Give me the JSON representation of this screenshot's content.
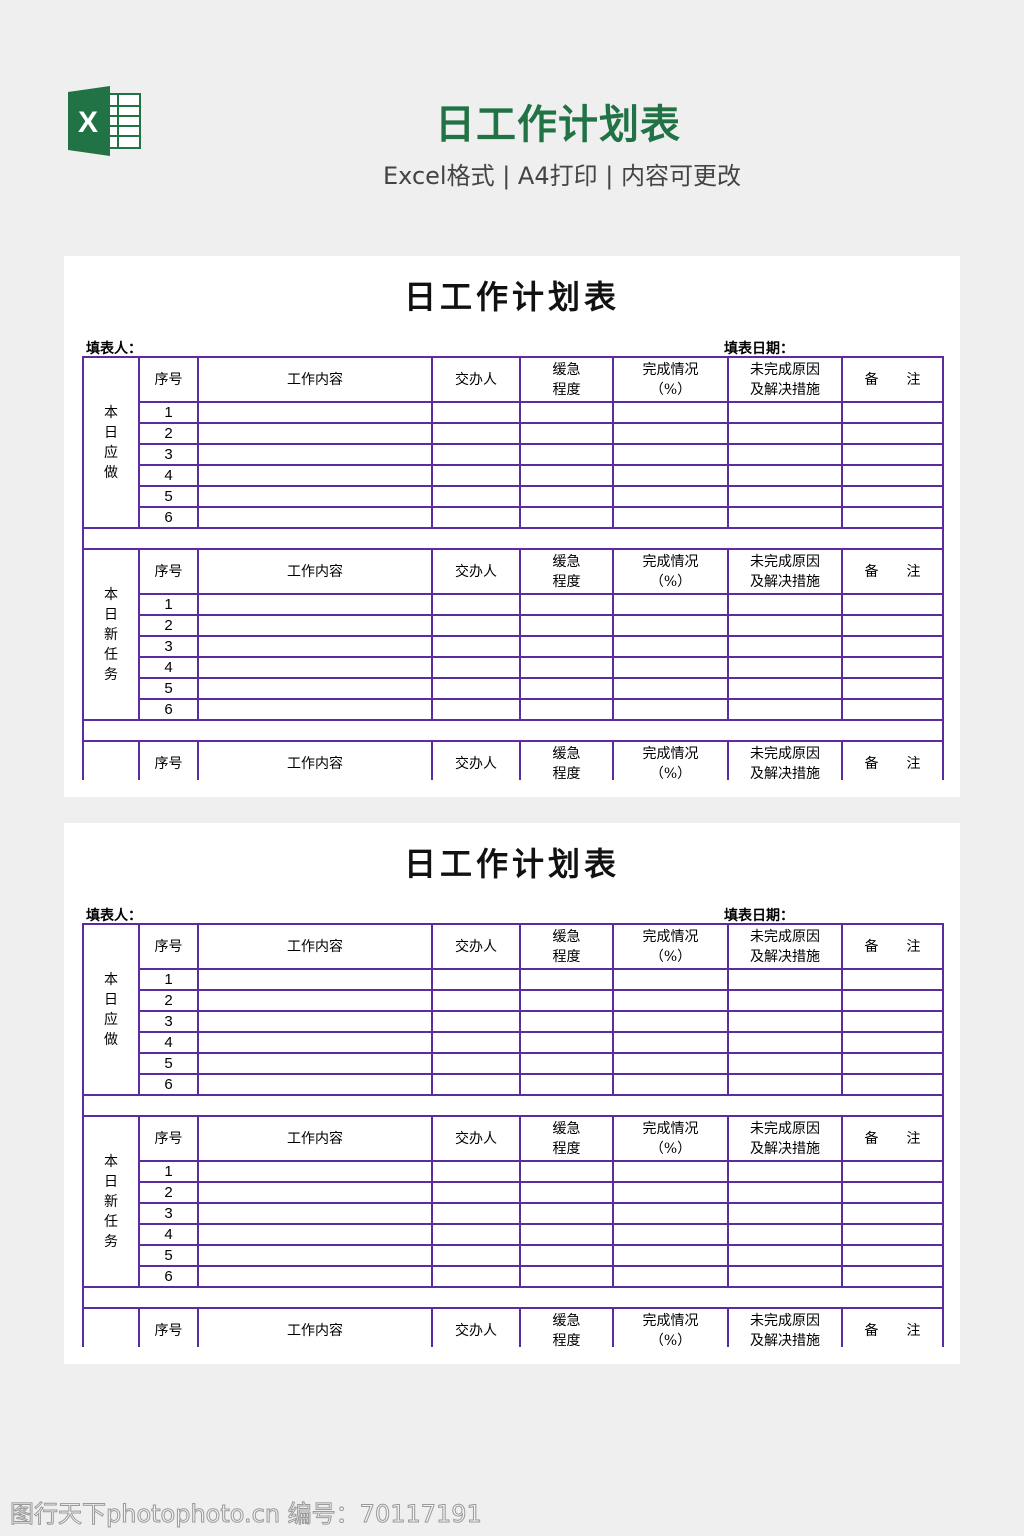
{
  "header": {
    "title": "日工作计划表",
    "subtitle": "Excel格式 | A4打印 | 内容可更改",
    "logo_letter": "X",
    "brand_color": "#217346"
  },
  "table_line_color": "#5a2ca0",
  "columns": [
    "序号",
    "工作内容",
    "交办人",
    "缓急\n程度",
    "完成情况\n（%）",
    "未完成原因\n及解决措施",
    "备　　注"
  ],
  "sheets": [
    {
      "title": "日工作计划表",
      "filler_label": "填表人：",
      "date_label": "填表日期：",
      "sections": [
        {
          "label": "本\n日\n应\n做",
          "rows": [
            "1",
            "2",
            "3",
            "4",
            "5",
            "6"
          ]
        },
        {
          "label": "本\n日\n新\n任\n务",
          "rows": [
            "1",
            "2",
            "3",
            "4",
            "5",
            "6"
          ]
        },
        {
          "label": "",
          "rows": []
        }
      ]
    },
    {
      "title": "日工作计划表",
      "filler_label": "填表人：",
      "date_label": "填表日期：",
      "sections": [
        {
          "label": "本\n日\n应\n做",
          "rows": [
            "1",
            "2",
            "3",
            "4",
            "5",
            "6"
          ]
        },
        {
          "label": "本\n日\n新\n任\n务",
          "rows": [
            "1",
            "2",
            "3",
            "4",
            "5",
            "6"
          ]
        },
        {
          "label": "",
          "rows": []
        }
      ]
    }
  ],
  "watermark": "图行天下photophoto.cn 编号：70117191"
}
